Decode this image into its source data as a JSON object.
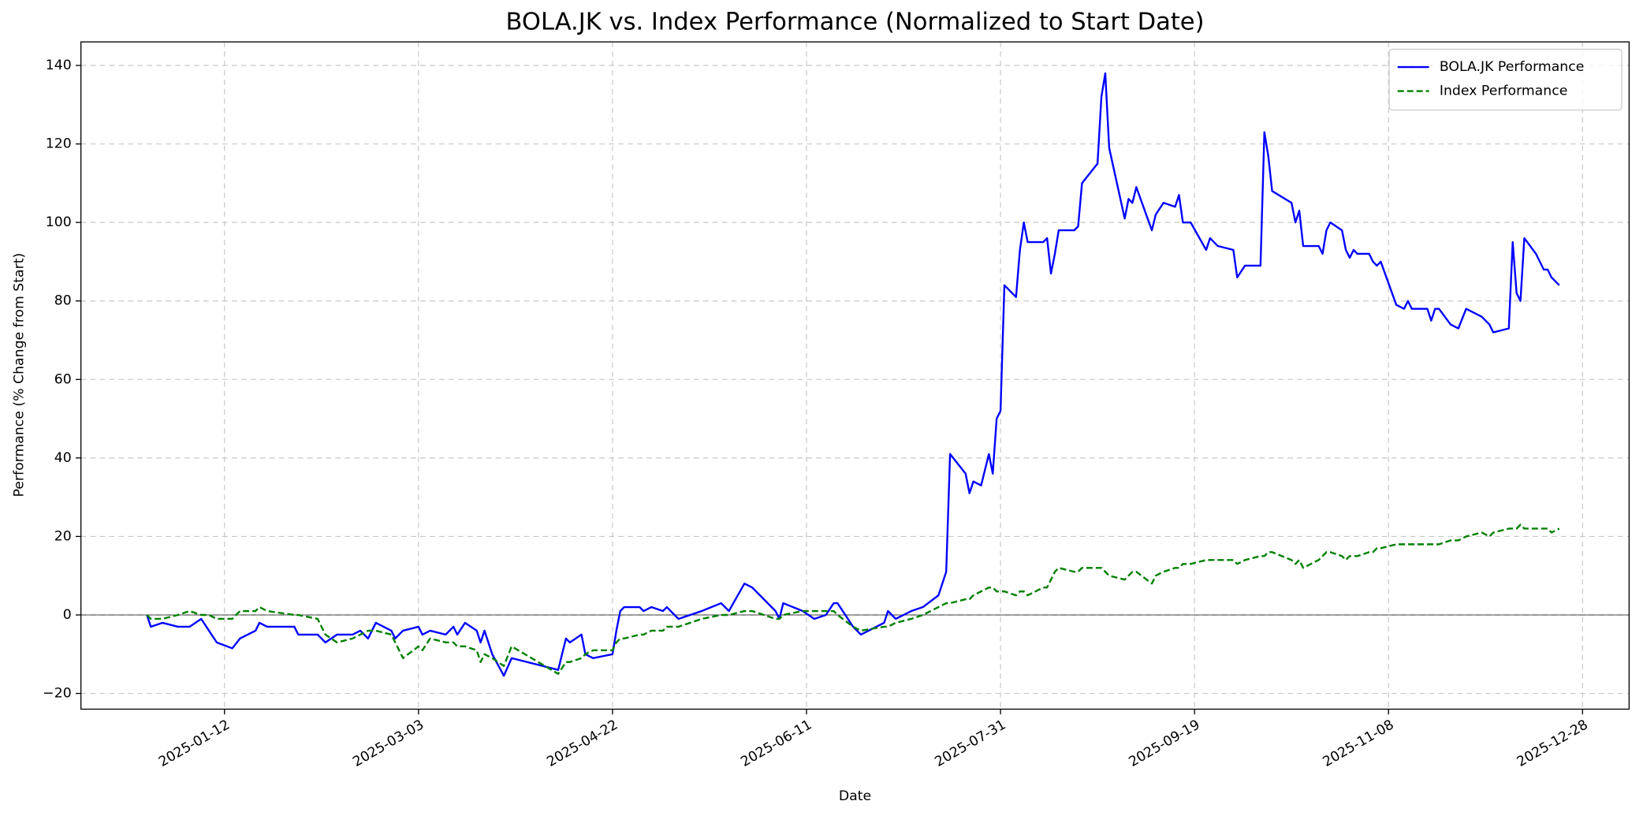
{
  "chart_data": {
    "type": "line",
    "title": "BOLA.JK vs. Index Performance (Normalized to Start Date)",
    "x_label": "Date",
    "y_label": "Performance (% Change from Start)",
    "x": [
      "2024-12-23",
      "2024-12-24",
      "2024-12-27",
      "2024-12-31",
      "2025-01-03",
      "2025-01-06",
      "2025-01-08",
      "2025-01-10",
      "2025-01-14",
      "2025-01-16",
      "2025-01-20",
      "2025-01-21",
      "2025-01-23",
      "2025-01-30",
      "2025-01-31",
      "2025-02-05",
      "2025-02-07",
      "2025-02-10",
      "2025-02-14",
      "2025-02-16",
      "2025-02-18",
      "2025-02-20",
      "2025-02-24",
      "2025-02-25",
      "2025-02-27",
      "2025-03-03",
      "2025-03-04",
      "2025-03-06",
      "2025-03-10",
      "2025-03-12",
      "2025-03-13",
      "2025-03-15",
      "2025-03-18",
      "2025-03-19",
      "2025-03-20",
      "2025-03-22",
      "2025-03-25",
      "2025-03-27",
      "2025-04-08",
      "2025-04-10",
      "2025-04-11",
      "2025-04-14",
      "2025-04-15",
      "2025-04-17",
      "2025-04-22",
      "2025-04-23",
      "2025-04-24",
      "2025-04-25",
      "2025-04-29",
      "2025-04-30",
      "2025-05-02",
      "2025-05-05",
      "2025-05-06",
      "2025-05-09",
      "2025-05-15",
      "2025-05-20",
      "2025-05-22",
      "2025-05-26",
      "2025-05-28",
      "2025-06-03",
      "2025-06-04",
      "2025-06-05",
      "2025-06-10",
      "2025-06-13",
      "2025-06-16",
      "2025-06-18",
      "2025-06-19",
      "2025-06-23",
      "2025-06-25",
      "2025-07-01",
      "2025-07-02",
      "2025-07-04",
      "2025-07-08",
      "2025-07-11",
      "2025-07-15",
      "2025-07-17",
      "2025-07-18",
      "2025-07-22",
      "2025-07-23",
      "2025-07-24",
      "2025-07-26",
      "2025-07-28",
      "2025-07-29",
      "2025-07-30",
      "2025-07-31",
      "2025-08-01",
      "2025-08-04",
      "2025-08-05",
      "2025-08-06",
      "2025-08-07",
      "2025-08-11",
      "2025-08-12",
      "2025-08-13",
      "2025-08-14",
      "2025-08-15",
      "2025-08-19",
      "2025-08-20",
      "2025-08-21",
      "2025-08-25",
      "2025-08-26",
      "2025-08-27",
      "2025-08-28",
      "2025-09-01",
      "2025-09-02",
      "2025-09-03",
      "2025-09-04",
      "2025-09-08",
      "2025-09-09",
      "2025-09-11",
      "2025-09-14",
      "2025-09-15",
      "2025-09-16",
      "2025-09-18",
      "2025-09-22",
      "2025-09-23",
      "2025-09-25",
      "2025-09-29",
      "2025-09-30",
      "2025-10-02",
      "2025-10-06",
      "2025-10-07",
      "2025-10-08",
      "2025-10-09",
      "2025-10-14",
      "2025-10-15",
      "2025-10-16",
      "2025-10-17",
      "2025-10-21",
      "2025-10-22",
      "2025-10-23",
      "2025-10-24",
      "2025-10-27",
      "2025-10-28",
      "2025-10-29",
      "2025-10-30",
      "2025-10-31",
      "2025-11-03",
      "2025-11-04",
      "2025-11-05",
      "2025-11-06",
      "2025-11-10",
      "2025-11-12",
      "2025-11-13",
      "2025-11-14",
      "2025-11-18",
      "2025-11-19",
      "2025-11-20",
      "2025-11-21",
      "2025-11-24",
      "2025-11-26",
      "2025-11-28",
      "2025-12-02",
      "2025-12-04",
      "2025-12-05",
      "2025-12-09",
      "2025-12-10",
      "2025-12-11",
      "2025-12-12",
      "2025-12-13",
      "2025-12-16",
      "2025-12-18",
      "2025-12-19",
      "2025-12-20",
      "2025-12-22"
    ],
    "series": [
      {
        "name": "BOLA.JK Performance",
        "color": "#0000ff",
        "dashed": false,
        "values": [
          0,
          -3,
          -2,
          -3,
          -3,
          -1,
          -4,
          -7,
          -8.5,
          -6,
          -4,
          -2,
          -3,
          -3,
          -5,
          -5,
          -7,
          -5,
          -5,
          -4,
          -6,
          -2,
          -4,
          -6,
          -4,
          -3,
          -5,
          -4,
          -5,
          -3,
          -5,
          -2,
          -4,
          -7,
          -4,
          -10,
          -15.5,
          -11,
          -14,
          -6,
          -7,
          -5,
          -10,
          -11,
          -10,
          -4,
          1,
          2,
          2,
          1,
          2,
          1,
          2,
          -1,
          1,
          3,
          1,
          8,
          7,
          1,
          -1,
          3,
          1,
          -1,
          0,
          3,
          3,
          -3,
          -5,
          -2,
          1,
          -1,
          1,
          2,
          5,
          11,
          41,
          36,
          31,
          34,
          33,
          41,
          36,
          50,
          52,
          84,
          81,
          93,
          100,
          95,
          95,
          96,
          87,
          92,
          98,
          98,
          99,
          110,
          115,
          132,
          138,
          119,
          101,
          106,
          105,
          109,
          98,
          102,
          105,
          104,
          107,
          100,
          100,
          93,
          96,
          94,
          93,
          86,
          89,
          89,
          123,
          117,
          108,
          105,
          100,
          103,
          94,
          94,
          92,
          98,
          100,
          98,
          93,
          91,
          93,
          92,
          92,
          90,
          89,
          90,
          79,
          78,
          80,
          78,
          78,
          75,
          78,
          78,
          74,
          73,
          78,
          76,
          74,
          72,
          73,
          95,
          82,
          80,
          96,
          92,
          88,
          88,
          86,
          84
        ]
      },
      {
        "name": "Index Performance",
        "color": "#008000",
        "dashed": true,
        "values": [
          0,
          -1,
          -1,
          0,
          1,
          0,
          0,
          -1,
          -1,
          1,
          1,
          2,
          1,
          0,
          0,
          -1,
          -5,
          -7,
          -6,
          -5,
          -4,
          -4,
          -5,
          -7,
          -11,
          -8,
          -9,
          -6,
          -7,
          -7,
          -8,
          -8,
          -9,
          -12,
          -10,
          -11,
          -13,
          -8,
          -15,
          -12,
          -12,
          -11,
          -10,
          -9,
          -9,
          -7,
          -6,
          -6,
          -5,
          -5,
          -4,
          -4,
          -3,
          -3,
          -1,
          0,
          0,
          1,
          1,
          -1,
          -1,
          0,
          1,
          1,
          1,
          1,
          0,
          -3,
          -4,
          -3,
          -3,
          -2,
          -1,
          0,
          2,
          3,
          3,
          4,
          4,
          5,
          6,
          7,
          7,
          6,
          6,
          6,
          5,
          6,
          6,
          5,
          7,
          7,
          9,
          11,
          12,
          11,
          11,
          12,
          12,
          12,
          11,
          10,
          9,
          10,
          11,
          11,
          8,
          10,
          11,
          12,
          12,
          13,
          13,
          14,
          14,
          14,
          14,
          13,
          14,
          15,
          15,
          16,
          16,
          14,
          13,
          14,
          12,
          14,
          15,
          16,
          16,
          15,
          14,
          15,
          15,
          15,
          16,
          16,
          17,
          17,
          18,
          18,
          18,
          18,
          18,
          18,
          18,
          18,
          19,
          19,
          20,
          21,
          20,
          21,
          22,
          22,
          22,
          23,
          22,
          22,
          22,
          22,
          21,
          22
        ]
      }
    ],
    "xlim": [
      "2024-12-06",
      "2026-01-09"
    ],
    "xticks": [
      "2025-01-12",
      "2025-03-03",
      "2025-04-22",
      "2025-06-11",
      "2025-07-31",
      "2025-09-19",
      "2025-11-08",
      "2025-12-28"
    ],
    "ylim": [
      -24,
      146
    ],
    "yticks": [
      {
        "value": -20,
        "label": "−20"
      },
      0,
      20,
      40,
      60,
      80,
      100,
      120,
      140
    ],
    "hline": 0,
    "grid": true,
    "legend": "upper right"
  }
}
